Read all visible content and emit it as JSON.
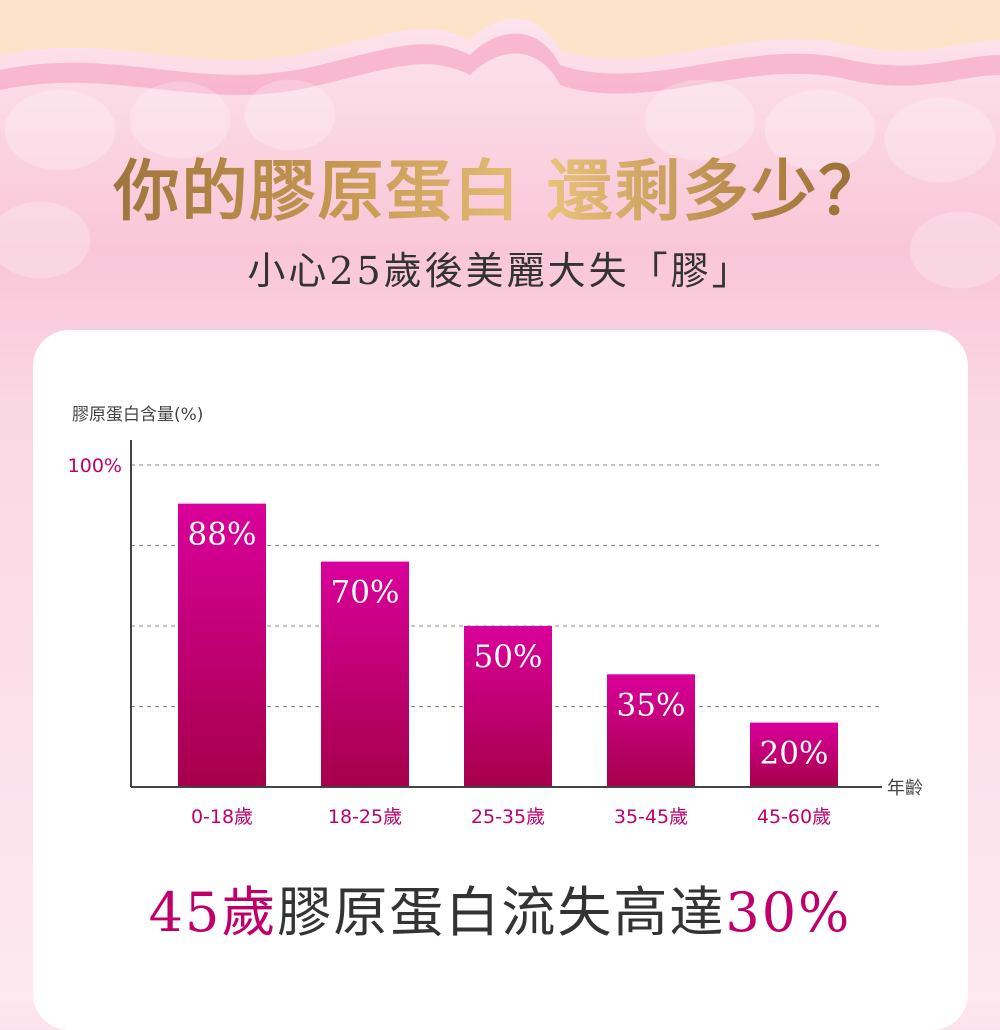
{
  "header": {
    "title": "你的膠原蛋白 還剩多少？",
    "subtitle": "小心25歲後美麗大失「膠」"
  },
  "headline": {
    "pre": "45歲",
    "mid": "膠原蛋白流失高達",
    "post": "30%"
  },
  "colors": {
    "bar_top": "#d9009b",
    "bar_bottom": "#a6004a",
    "accent": "#c0006a",
    "axis": "#444444"
  },
  "chart_data": {
    "type": "bar",
    "ylabel": "膠原蛋白含量(%)",
    "xlabel": "年齡",
    "ylim": [
      0,
      100
    ],
    "yticks": [
      {
        "value": 100,
        "label": "100%"
      }
    ],
    "gridlines": [
      25,
      50,
      75,
      100
    ],
    "grid": "dashed",
    "categories": [
      "0-18歲",
      "18-25歲",
      "25-35歲",
      "35-45歲",
      "45-60歲"
    ],
    "values": [
      88,
      70,
      50,
      35,
      20
    ],
    "data_labels": [
      "88%",
      "70%",
      "50%",
      "35%",
      "20%"
    ]
  }
}
